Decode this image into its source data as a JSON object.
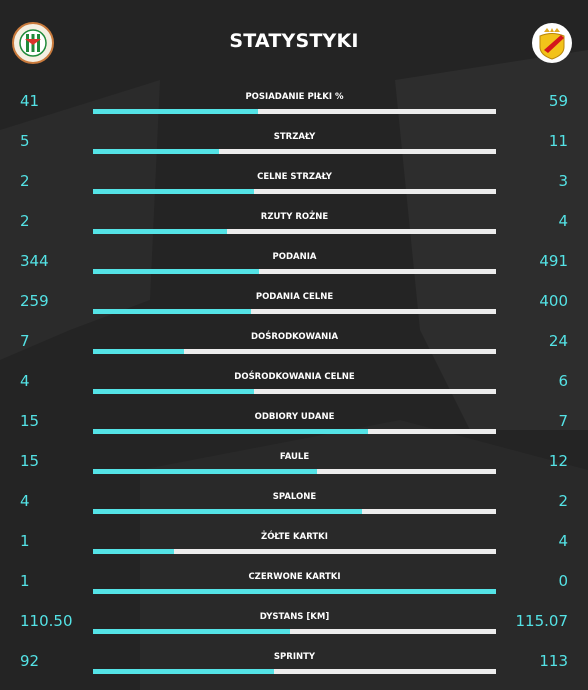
{
  "title": "STATYSTYKI",
  "home_logo": "zaglebie-lubin-crest-icon",
  "away_logo": "korona-kielce-crest-icon",
  "colors": {
    "background": "#242424",
    "accent": "#54e3e6",
    "bar_track": "#ececec",
    "text": "#ffffff"
  },
  "stats": [
    {
      "label": "POSIADANIE PIŁKI %",
      "home": "41",
      "away": "59",
      "home_value": 41,
      "away_value": 59
    },
    {
      "label": "STRZAŁY",
      "home": "5",
      "away": "11",
      "home_value": 5,
      "away_value": 11
    },
    {
      "label": "CELNE STRZAŁY",
      "home": "2",
      "away": "3",
      "home_value": 2,
      "away_value": 3
    },
    {
      "label": "RZUTY ROŻNE",
      "home": "2",
      "away": "4",
      "home_value": 2,
      "away_value": 4
    },
    {
      "label": "PODANIA",
      "home": "344",
      "away": "491",
      "home_value": 344,
      "away_value": 491
    },
    {
      "label": "PODANIA CELNE",
      "home": "259",
      "away": "400",
      "home_value": 259,
      "away_value": 400
    },
    {
      "label": "DOŚRODKOWANIA",
      "home": "7",
      "away": "24",
      "home_value": 7,
      "away_value": 24
    },
    {
      "label": "DOŚRODKOWANIA CELNE",
      "home": "4",
      "away": "6",
      "home_value": 4,
      "away_value": 6
    },
    {
      "label": "ODBIORY UDANE",
      "home": "15",
      "away": "7",
      "home_value": 15,
      "away_value": 7
    },
    {
      "label": "FAULE",
      "home": "15",
      "away": "12",
      "home_value": 15,
      "away_value": 12
    },
    {
      "label": "SPALONE",
      "home": "4",
      "away": "2",
      "home_value": 4,
      "away_value": 2
    },
    {
      "label": "ŻÓŁTE KARTKI",
      "home": "1",
      "away": "4",
      "home_value": 1,
      "away_value": 4
    },
    {
      "label": "CZERWONE KARTKI",
      "home": "1",
      "away": "0",
      "home_value": 1,
      "away_value": 0
    },
    {
      "label": "DYSTANS [KM]",
      "home": "110.50",
      "away": "115.07",
      "home_value": 110.5,
      "away_value": 115.07
    },
    {
      "label": "SPRINTY",
      "home": "92",
      "away": "113",
      "home_value": 92,
      "away_value": 113
    }
  ]
}
